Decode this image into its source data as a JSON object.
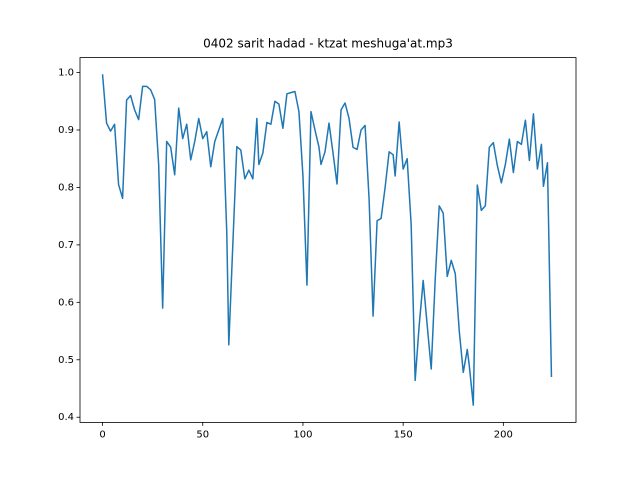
{
  "chart_data": {
    "type": "line",
    "title": "0402 sarit hadad - ktzat meshuga'at.mp3",
    "series": [
      {
        "color": "#1f77b4",
        "x": [
          0,
          2,
          4,
          6,
          8,
          10,
          12,
          14,
          16,
          18,
          20,
          22,
          24,
          26,
          28,
          30,
          32,
          34,
          36,
          38,
          40,
          42,
          44,
          46,
          48,
          50,
          52,
          54,
          56,
          58,
          60,
          62,
          63,
          65,
          67,
          69,
          71,
          73,
          75,
          77,
          78,
          80,
          82,
          84,
          86,
          88,
          90,
          92,
          94,
          96,
          98,
          100,
          102,
          104,
          106,
          108,
          109,
          111,
          113,
          115,
          117,
          119,
          121,
          123,
          125,
          127,
          129,
          131,
          133,
          135,
          137,
          139,
          141,
          143,
          145,
          146,
          148,
          150,
          152,
          154,
          156,
          158,
          160,
          162,
          164,
          166,
          168,
          170,
          172,
          174,
          176,
          178,
          180,
          182,
          183,
          185,
          187,
          189,
          191,
          193,
          195,
          197,
          199,
          201,
          203,
          205,
          207,
          209,
          211,
          213,
          215,
          217,
          219,
          220,
          222,
          224
        ],
        "values": [
          0.997,
          0.912,
          0.898,
          0.91,
          0.805,
          0.781,
          0.952,
          0.96,
          0.935,
          0.918,
          0.976,
          0.976,
          0.97,
          0.953,
          0.84,
          0.59,
          0.88,
          0.87,
          0.822,
          0.938,
          0.885,
          0.91,
          0.848,
          0.88,
          0.92,
          0.885,
          0.897,
          0.836,
          0.88,
          0.9,
          0.92,
          0.72,
          0.526,
          0.7,
          0.871,
          0.865,
          0.815,
          0.83,
          0.815,
          0.92,
          0.84,
          0.86,
          0.913,
          0.91,
          0.95,
          0.945,
          0.903,
          0.963,
          0.965,
          0.967,
          0.932,
          0.82,
          0.63,
          0.932,
          0.9,
          0.87,
          0.84,
          0.862,
          0.912,
          0.86,
          0.806,
          0.935,
          0.947,
          0.92,
          0.87,
          0.866,
          0.9,
          0.908,
          0.78,
          0.576,
          0.742,
          0.746,
          0.8,
          0.862,
          0.857,
          0.82,
          0.914,
          0.832,
          0.85,
          0.735,
          0.464,
          0.56,
          0.638,
          0.56,
          0.484,
          0.64,
          0.768,
          0.755,
          0.645,
          0.673,
          0.65,
          0.55,
          0.478,
          0.518,
          0.49,
          0.421,
          0.804,
          0.76,
          0.768,
          0.87,
          0.878,
          0.838,
          0.808,
          0.84,
          0.884,
          0.826,
          0.88,
          0.875,
          0.917,
          0.847,
          0.928,
          0.832,
          0.875,
          0.802,
          0.843,
          0.47
        ]
      }
    ],
    "xlim": [
      -11.25,
      236.25
    ],
    "xticks": [
      0,
      50,
      100,
      150,
      200
    ],
    "ylim": [
      0.391,
      1.026
    ],
    "yticks": [
      0.4,
      0.5,
      0.6,
      0.7,
      0.8,
      0.9,
      {
        "value": 1.0,
        "label": "1.0"
      }
    ]
  }
}
